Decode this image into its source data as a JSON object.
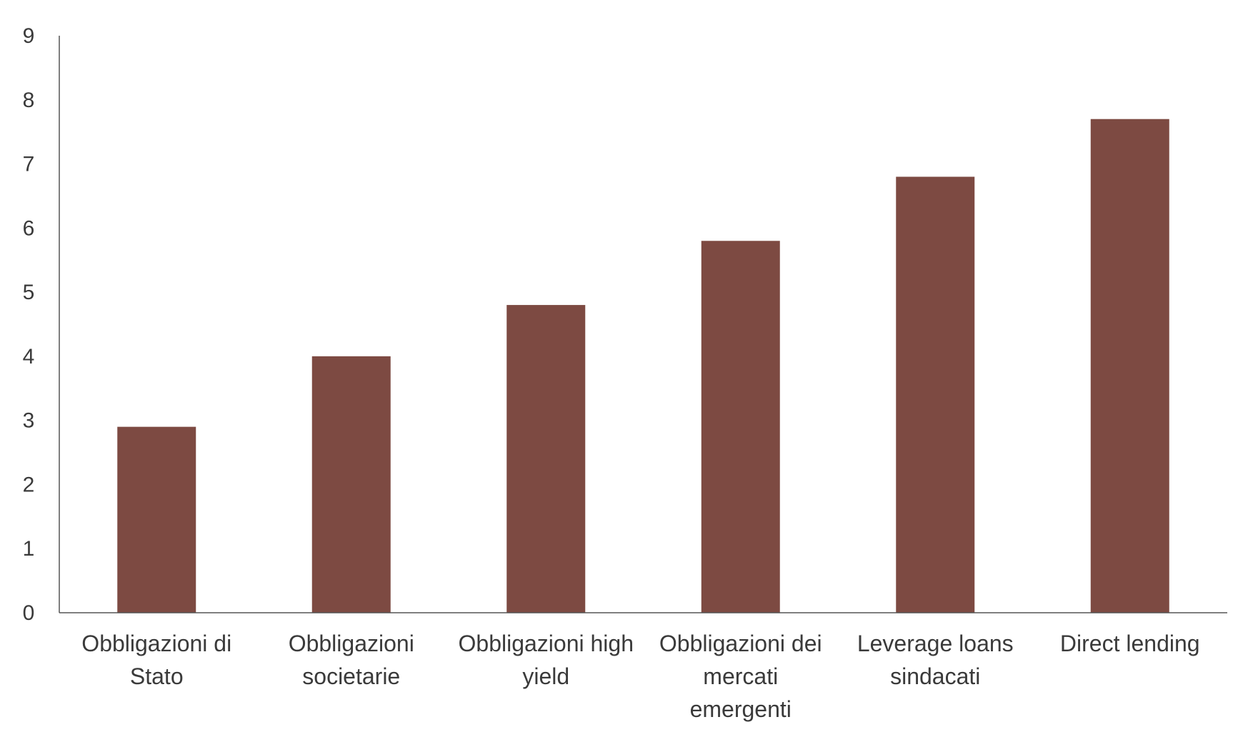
{
  "chart_data": {
    "type": "bar",
    "categories": [
      [
        "Obbligazioni di",
        "Stato"
      ],
      [
        "Obbligazioni",
        "societarie"
      ],
      [
        "Obbligazioni high",
        "yield"
      ],
      [
        "Obbligazioni dei",
        "mercati",
        "emergenti"
      ],
      [
        "Leverage loans",
        "sindacati"
      ],
      [
        "Direct lending"
      ]
    ],
    "values": [
      2.9,
      4.0,
      4.8,
      5.8,
      6.8,
      7.7
    ],
    "ylim": [
      0,
      9
    ],
    "yticks": [
      0,
      1,
      2,
      3,
      4,
      5,
      6,
      7,
      8,
      9
    ],
    "grid": false,
    "legend": "none",
    "bar_color": "#7d4a42",
    "axis_color": "#555555"
  }
}
